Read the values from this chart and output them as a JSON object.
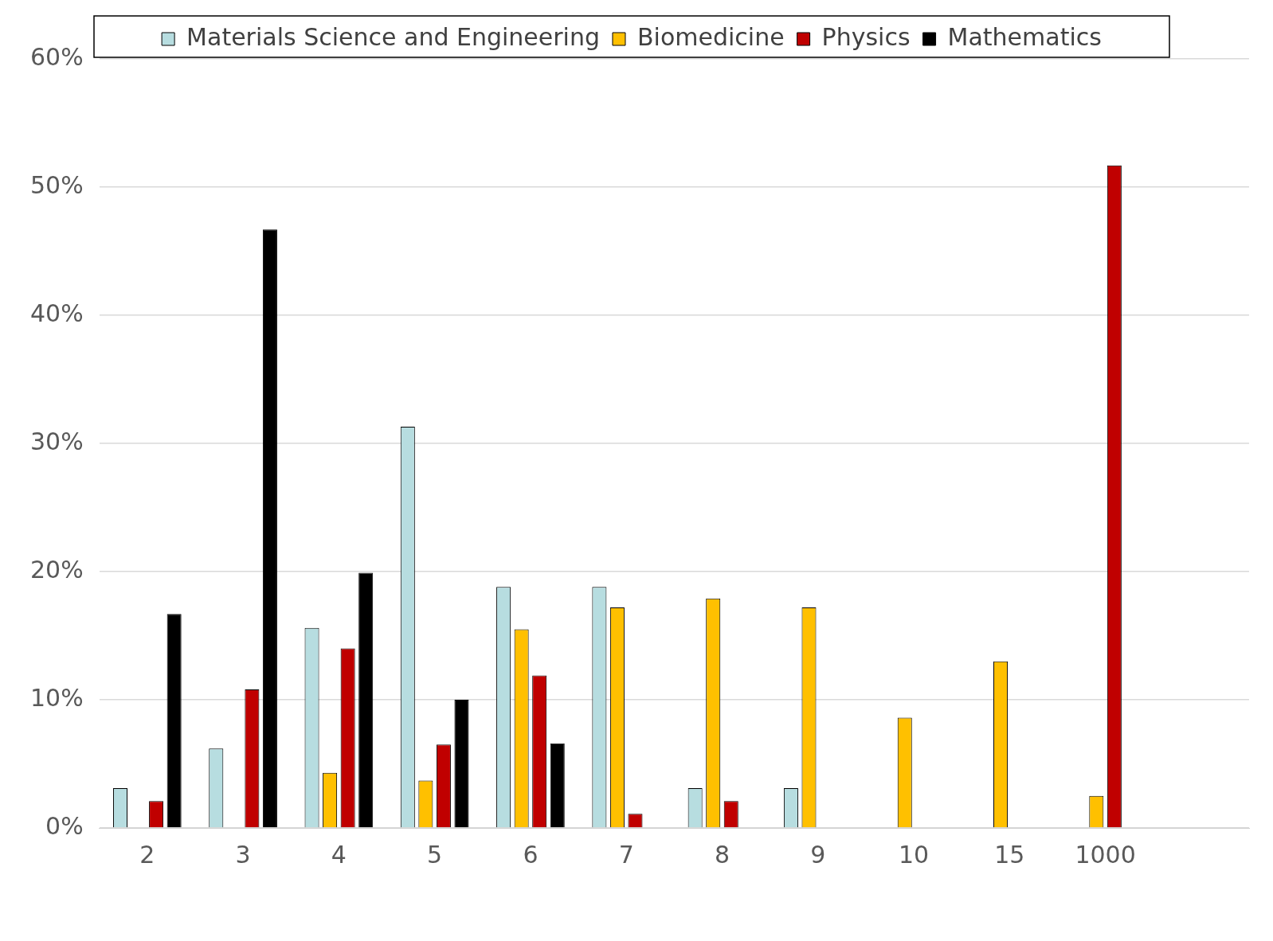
{
  "chart_data": {
    "type": "bar",
    "categories": [
      "2",
      "3",
      "4",
      "5",
      "6",
      "7",
      "8",
      "9",
      "10",
      "15",
      "1000",
      null
    ],
    "series": [
      {
        "name": "Materials Science and Engineering",
        "color": "#b7dde0",
        "values": [
          3.1,
          6.2,
          15.6,
          31.3,
          18.8,
          18.8,
          3.1,
          3.1,
          0,
          0,
          0,
          null
        ]
      },
      {
        "name": "Biomedicine",
        "color": "#ffc000",
        "values": [
          0,
          0,
          4.3,
          3.7,
          15.5,
          17.2,
          17.9,
          17.2,
          8.6,
          13.0,
          2.5,
          null
        ]
      },
      {
        "name": "Physics",
        "color": "#c00000",
        "values": [
          2.1,
          10.8,
          14.0,
          6.5,
          11.9,
          1.1,
          2.1,
          0,
          0,
          0,
          51.7,
          null
        ]
      },
      {
        "name": "Mathematics",
        "color": "#000000",
        "values": [
          16.7,
          46.7,
          19.9,
          10.0,
          6.6,
          0,
          0,
          0,
          0,
          0,
          0,
          null
        ]
      }
    ],
    "ylim": [
      0,
      60
    ],
    "yticks": [
      {
        "value": 0,
        "label": "0%"
      },
      {
        "value": 10,
        "label": "10%"
      },
      {
        "value": 20,
        "label": "20%"
      },
      {
        "value": 30,
        "label": "30%"
      },
      {
        "value": 40,
        "label": "40%"
      },
      {
        "value": 50,
        "label": "50%"
      },
      {
        "value": 60,
        "label": "60%"
      }
    ],
    "grid": "y",
    "legend": "top"
  }
}
